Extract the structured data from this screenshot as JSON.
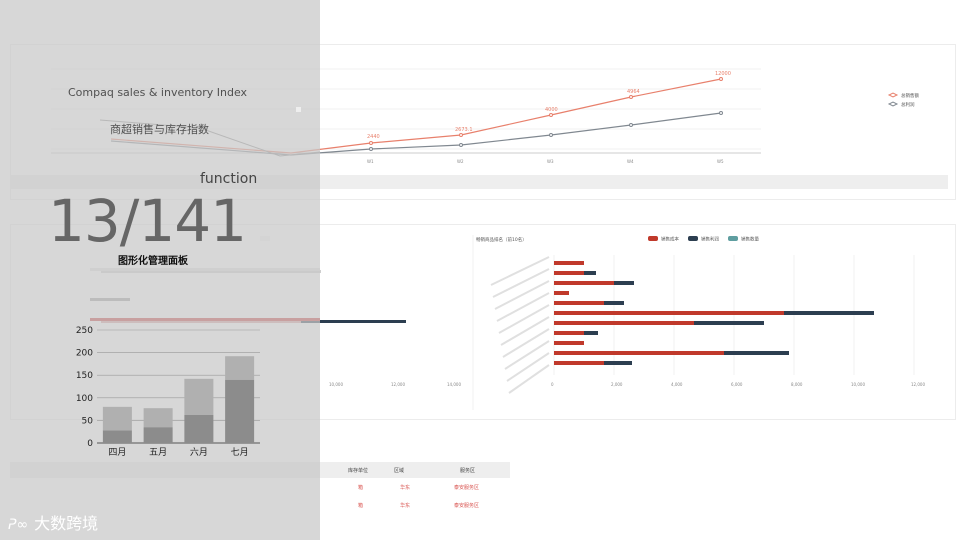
{
  "background": {
    "top_card": {
      "legend": [
        "总销售额",
        "总利润"
      ],
      "x_ticks": [
        "W1",
        "W2",
        "W3",
        "W4",
        "W5"
      ],
      "point_labels": [
        "2440",
        "2673.1",
        "4000",
        "4964",
        "12000"
      ]
    },
    "mid_card": {
      "right_title": "畅销商品排名（前10名）",
      "legend": [
        "销售成本",
        "销售利润",
        "销售数量"
      ],
      "x_ticks": [
        "0",
        "2,000",
        "4,000",
        "6,000",
        "8,000",
        "10,000",
        "12,000",
        "14,000"
      ],
      "left_x_ticks": [
        "10,000",
        "12,000",
        "14,000"
      ]
    },
    "table": {
      "headers": [
        "库存单位",
        "区域",
        "服务区"
      ],
      "rows": [
        {
          "unit": "箱",
          "region": "华东",
          "service": "泰安服务区"
        },
        {
          "unit": "箱",
          "region": "华东",
          "service": "泰安服务区"
        }
      ]
    },
    "colors": {
      "sales_line": "#e8806c",
      "profit_line": "#808890",
      "cost_bar": "#c0392b",
      "profit_bar": "#2c3e50",
      "qty_bar": "#5f9ea0"
    }
  },
  "overlay": {
    "subtitle_en": "Compaq sales & inventory Index",
    "subtitle_zh": "商超销售与库存指数",
    "keyword": "function",
    "counter": "13/141",
    "panel_title": "图形化管理面板",
    "logo_text": "大数跨境",
    "logo_mark": "ᕈ∞"
  },
  "chart_data": {
    "type": "bar",
    "stacked": true,
    "categories": [
      "四月",
      "五月",
      "六月",
      "七月"
    ],
    "series": [
      {
        "values": [
          28,
          35,
          62,
          140
        ]
      },
      {
        "values": [
          52,
          42,
          80,
          52
        ]
      }
    ],
    "ylim": [
      0,
      250
    ],
    "y_ticks": [
      0,
      50,
      100,
      150,
      200,
      250
    ],
    "grid": true,
    "colors": [
      "#8c8c8c",
      "#b0b0b0"
    ]
  }
}
